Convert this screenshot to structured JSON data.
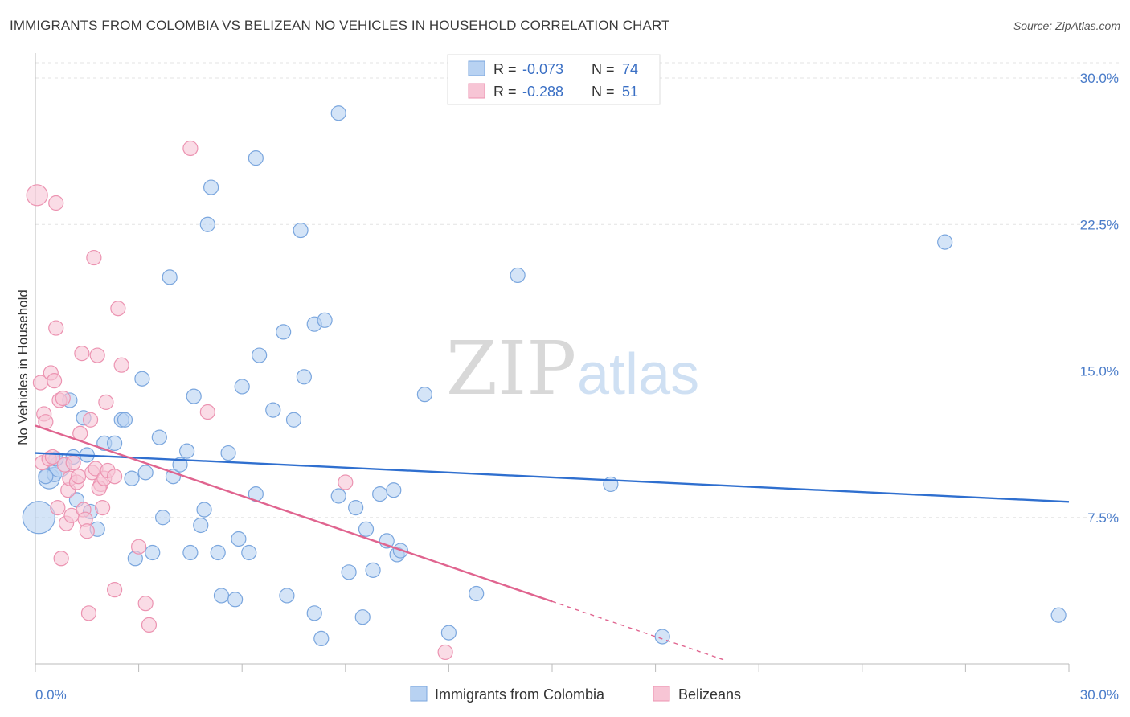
{
  "title": "IMMIGRANTS FROM COLOMBIA VS BELIZEAN NO VEHICLES IN HOUSEHOLD CORRELATION CHART",
  "source": "Source: ZipAtlas.com",
  "watermark": {
    "zip": "ZIP",
    "atlas": "atlas"
  },
  "colors": {
    "blue_fill": "#b8d2f2",
    "blue_stroke": "#7aa6de",
    "blue_line": "#2f6fcf",
    "pink_fill": "#f7c5d5",
    "pink_stroke": "#ec93b1",
    "pink_line": "#e0648f",
    "tick_text": "#4a7cc9",
    "grid": "#e3e3e3"
  },
  "legend_box": {
    "r_label": "R =",
    "n_label": "N =",
    "rows": [
      {
        "r": "-0.073",
        "n": "74"
      },
      {
        "r": "-0.288",
        "n": "51"
      }
    ]
  },
  "chart_data": {
    "type": "scatter",
    "xlabel": "",
    "ylabel": "No Vehicles in Household",
    "xlim": [
      0,
      30
    ],
    "ylim": [
      0,
      30
    ],
    "x_ticks": [
      {
        "value": 0,
        "label": "0.0%"
      },
      {
        "value": 30,
        "label": "30.0%"
      }
    ],
    "y_ticks": [
      {
        "value": 7.5,
        "label": "7.5%"
      },
      {
        "value": 15,
        "label": "15.0%"
      },
      {
        "value": 22.5,
        "label": "22.5%"
      },
      {
        "value": 30,
        "label": "30.0%"
      }
    ],
    "grid": true,
    "legend_position": "bottom",
    "series": [
      {
        "name": "Immigrants from Colombia",
        "color": "blue",
        "regression": {
          "x": [
            0,
            30
          ],
          "y": [
            10.8,
            8.3
          ]
        },
        "points": [
          [
            0.1,
            7.5
          ],
          [
            0.4,
            9.5
          ],
          [
            0.55,
            9.7
          ],
          [
            0.7,
            10.1
          ],
          [
            0.6,
            10.5
          ],
          [
            1.0,
            13.5
          ],
          [
            1.2,
            8.4
          ],
          [
            1.4,
            12.6
          ],
          [
            1.5,
            10.7
          ],
          [
            1.6,
            7.8
          ],
          [
            1.8,
            6.9
          ],
          [
            2.0,
            11.3
          ],
          [
            2.3,
            11.3
          ],
          [
            2.5,
            12.5
          ],
          [
            2.6,
            12.5
          ],
          [
            2.8,
            9.5
          ],
          [
            2.9,
            5.4
          ],
          [
            3.1,
            14.6
          ],
          [
            3.2,
            9.8
          ],
          [
            3.4,
            5.7
          ],
          [
            3.6,
            11.6
          ],
          [
            3.7,
            7.5
          ],
          [
            3.9,
            19.8
          ],
          [
            4.0,
            9.6
          ],
          [
            4.2,
            10.2
          ],
          [
            4.4,
            10.9
          ],
          [
            4.5,
            5.7
          ],
          [
            4.6,
            13.7
          ],
          [
            4.8,
            7.1
          ],
          [
            4.9,
            7.9
          ],
          [
            5.0,
            22.5
          ],
          [
            5.1,
            24.4
          ],
          [
            5.3,
            5.7
          ],
          [
            5.4,
            3.5
          ],
          [
            5.6,
            10.8
          ],
          [
            5.8,
            3.3
          ],
          [
            5.9,
            6.4
          ],
          [
            6.0,
            14.2
          ],
          [
            6.2,
            5.7
          ],
          [
            6.4,
            8.7
          ],
          [
            6.5,
            15.8
          ],
          [
            6.4,
            25.9
          ],
          [
            6.9,
            13.0
          ],
          [
            7.2,
            17.0
          ],
          [
            7.3,
            3.5
          ],
          [
            7.5,
            12.5
          ],
          [
            7.7,
            22.2
          ],
          [
            7.8,
            14.7
          ],
          [
            8.1,
            2.6
          ],
          [
            8.1,
            17.4
          ],
          [
            8.3,
            1.3
          ],
          [
            8.4,
            17.6
          ],
          [
            8.8,
            8.6
          ],
          [
            8.8,
            28.2
          ],
          [
            9.1,
            4.7
          ],
          [
            9.3,
            8.0
          ],
          [
            9.5,
            2.4
          ],
          [
            9.6,
            6.9
          ],
          [
            9.8,
            4.8
          ],
          [
            10.0,
            8.7
          ],
          [
            10.2,
            6.3
          ],
          [
            10.4,
            8.9
          ],
          [
            10.5,
            5.6
          ],
          [
            10.6,
            5.8
          ],
          [
            11.3,
            13.8
          ],
          [
            12.0,
            1.6
          ],
          [
            12.8,
            3.6
          ],
          [
            14.0,
            19.9
          ],
          [
            16.7,
            9.2
          ],
          [
            18.2,
            1.4
          ],
          [
            26.4,
            21.6
          ],
          [
            29.7,
            2.5
          ],
          [
            0.3,
            9.6
          ],
          [
            1.1,
            10.6
          ]
        ],
        "sizes": {
          "0": 20,
          "1": 13,
          "3": 13
        }
      },
      {
        "name": "Belizeans",
        "color": "pink",
        "regression": {
          "x": [
            0,
            15
          ],
          "y": [
            12.2,
            3.2
          ]
        },
        "regression_dashed": {
          "x": [
            15,
            20
          ],
          "y": [
            3.2,
            0.2
          ]
        },
        "points": [
          [
            0.05,
            24.0
          ],
          [
            0.15,
            14.4
          ],
          [
            0.2,
            10.3
          ],
          [
            0.25,
            12.8
          ],
          [
            0.3,
            12.4
          ],
          [
            0.4,
            10.5
          ],
          [
            0.45,
            14.9
          ],
          [
            0.5,
            10.6
          ],
          [
            0.55,
            14.5
          ],
          [
            0.6,
            17.2
          ],
          [
            0.6,
            23.6
          ],
          [
            0.65,
            8.0
          ],
          [
            0.7,
            13.5
          ],
          [
            0.75,
            5.4
          ],
          [
            0.8,
            13.6
          ],
          [
            0.85,
            10.2
          ],
          [
            0.9,
            7.2
          ],
          [
            0.95,
            8.9
          ],
          [
            1.0,
            9.5
          ],
          [
            1.05,
            7.6
          ],
          [
            1.1,
            10.3
          ],
          [
            1.2,
            9.3
          ],
          [
            1.25,
            9.6
          ],
          [
            1.3,
            11.8
          ],
          [
            1.35,
            15.9
          ],
          [
            1.4,
            7.9
          ],
          [
            1.45,
            7.4
          ],
          [
            1.5,
            6.8
          ],
          [
            1.55,
            2.6
          ],
          [
            1.6,
            12.5
          ],
          [
            1.65,
            9.8
          ],
          [
            1.7,
            20.8
          ],
          [
            1.75,
            10.0
          ],
          [
            1.8,
            15.8
          ],
          [
            1.9,
            9.2
          ],
          [
            1.85,
            9.0
          ],
          [
            1.95,
            8.0
          ],
          [
            2.0,
            9.5
          ],
          [
            2.05,
            13.4
          ],
          [
            2.1,
            9.9
          ],
          [
            2.3,
            9.6
          ],
          [
            2.3,
            3.8
          ],
          [
            2.4,
            18.2
          ],
          [
            2.5,
            15.3
          ],
          [
            3.0,
            6.0
          ],
          [
            3.2,
            3.1
          ],
          [
            3.3,
            2.0
          ],
          [
            4.5,
            26.4
          ],
          [
            5.0,
            12.9
          ],
          [
            9.0,
            9.3
          ],
          [
            11.9,
            0.6
          ]
        ],
        "sizes": {
          "0": 13
        }
      }
    ]
  }
}
